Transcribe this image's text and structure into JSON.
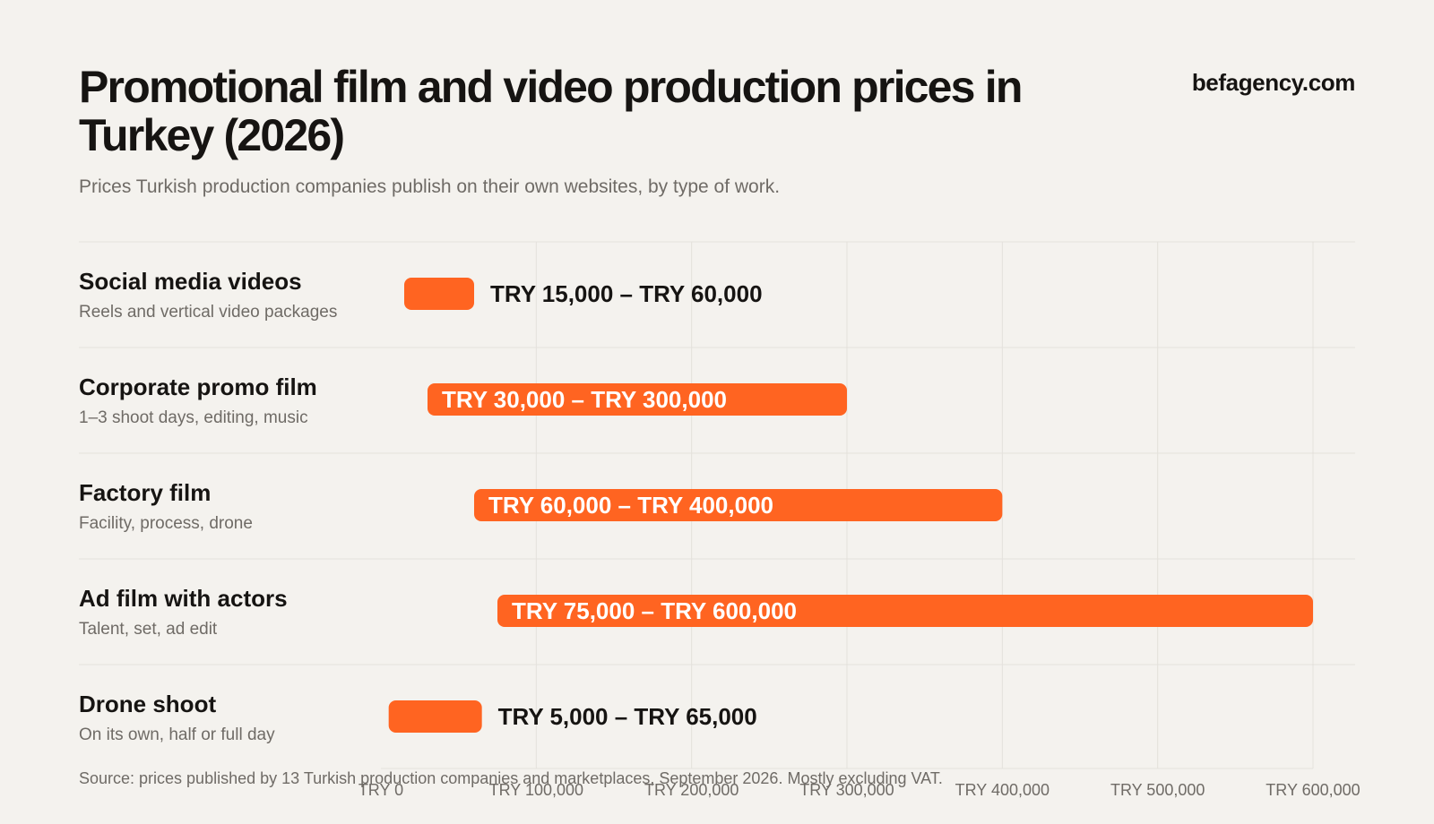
{
  "header": {
    "title": "Promotional film and video production prices in Turkey (2026)",
    "brand": "befagency.com",
    "subtitle": "Prices Turkish production companies publish on their own websites, by type of work."
  },
  "footer": {
    "source": "Source: prices published by 13 Turkish production companies and marketplaces, September 2026. Mostly excluding VAT."
  },
  "colors": {
    "bar": "#ff6421",
    "background": "#f4f2ee",
    "text": "#161412",
    "muted": "#6f6b66",
    "grid": "#e4e1dc"
  },
  "chart_data": {
    "type": "bar",
    "orientation": "horizontal",
    "range_bars": true,
    "xlim": [
      0,
      600000
    ],
    "x_ticks": [
      0,
      100000,
      200000,
      300000,
      400000,
      500000,
      600000
    ],
    "x_tick_labels": [
      "TRY 0",
      "TRY 100,000",
      "TRY 200,000",
      "TRY 300,000",
      "TRY 400,000",
      "TRY 500,000",
      "TRY 600,000"
    ],
    "grid": true,
    "categories": [
      {
        "name": "Social media videos",
        "description": "Reels and vertical video packages",
        "min": 15000,
        "max": 60000,
        "label": "TRY 15,000 – TRY 60,000"
      },
      {
        "name": "Corporate promo film",
        "description": "1–3 shoot days, editing, music",
        "min": 30000,
        "max": 300000,
        "label": "TRY 30,000 – TRY 300,000"
      },
      {
        "name": "Factory film",
        "description": "Facility, process, drone",
        "min": 60000,
        "max": 400000,
        "label": "TRY 60,000 – TRY 400,000"
      },
      {
        "name": "Ad film with actors",
        "description": "Talent, set, ad edit",
        "min": 75000,
        "max": 600000,
        "label": "TRY 75,000 – TRY 600,000"
      },
      {
        "name": "Drone shoot",
        "description": "On its own, half or full day",
        "min": 5000,
        "max": 65000,
        "label": "TRY 5,000 – TRY 65,000"
      }
    ]
  }
}
